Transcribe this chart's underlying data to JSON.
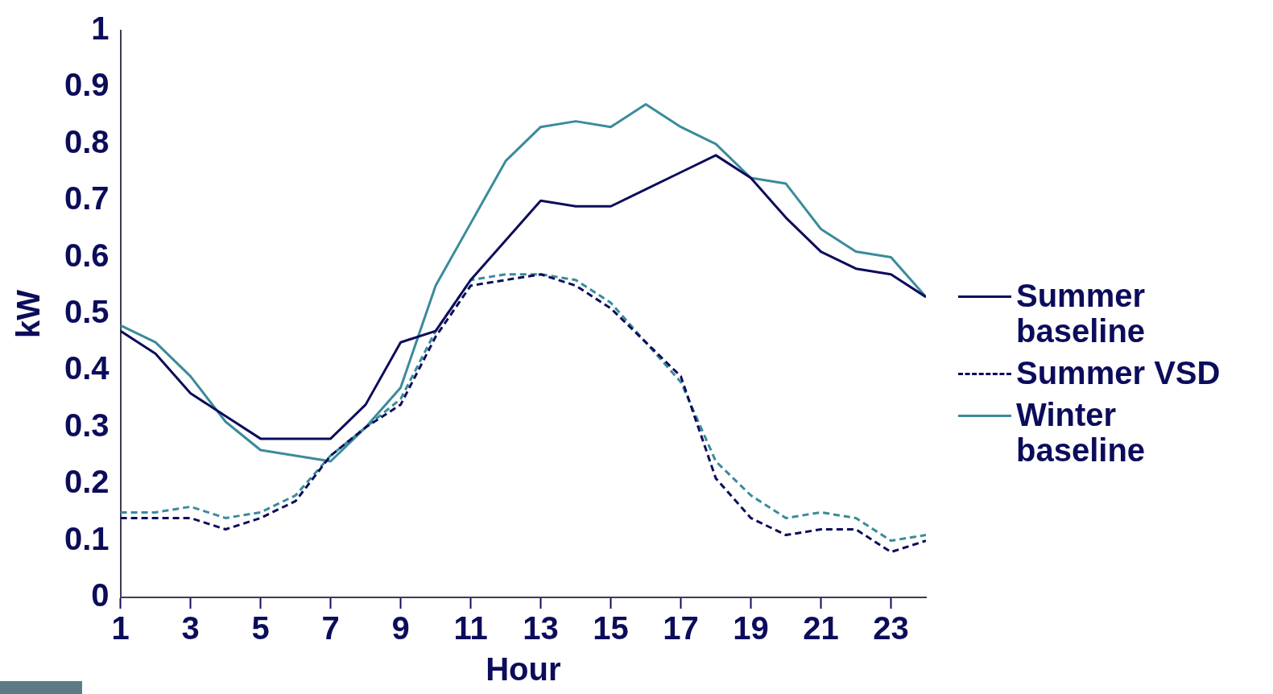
{
  "chart_data": {
    "type": "line",
    "xlabel": "Hour",
    "ylabel": "kW",
    "x": [
      1,
      2,
      3,
      4,
      5,
      6,
      7,
      8,
      9,
      10,
      11,
      12,
      13,
      14,
      15,
      16,
      17,
      18,
      19,
      20,
      21,
      22,
      23,
      24
    ],
    "xlim": [
      1,
      24
    ],
    "xticks": [
      1,
      3,
      5,
      7,
      9,
      11,
      13,
      15,
      17,
      19,
      21,
      23
    ],
    "ylim": [
      0,
      1
    ],
    "yticks": [
      0,
      0.1,
      0.2,
      0.3,
      0.4,
      0.5,
      0.6,
      0.7,
      0.8,
      0.9,
      1
    ],
    "grid": false,
    "legend": "right",
    "marker": "none",
    "series": [
      {
        "name": "Summer baseline",
        "color": "#0c0c5c",
        "line_style": "solid",
        "values": [
          0.47,
          0.43,
          0.36,
          0.32,
          0.28,
          0.28,
          0.28,
          0.34,
          0.45,
          0.47,
          0.56,
          0.63,
          0.7,
          0.69,
          0.69,
          0.72,
          0.75,
          0.78,
          0.74,
          0.67,
          0.61,
          0.58,
          0.57,
          0.53
        ]
      },
      {
        "name": "Summer VSD",
        "color": "#0c0c5c",
        "line_style": "dashed",
        "values": [
          0.14,
          0.14,
          0.14,
          0.12,
          0.14,
          0.17,
          0.25,
          0.3,
          0.34,
          0.46,
          0.55,
          0.56,
          0.57,
          0.55,
          0.51,
          0.45,
          0.39,
          0.21,
          0.14,
          0.11,
          0.12,
          0.12,
          0.08,
          0.1
        ]
      },
      {
        "name": "Winter baseline",
        "color": "#3a8b9b",
        "line_style": "solid",
        "values": [
          0.48,
          0.45,
          0.39,
          0.31,
          0.26,
          0.25,
          0.24,
          0.3,
          0.37,
          0.55,
          0.66,
          0.77,
          0.83,
          0.84,
          0.83,
          0.87,
          0.83,
          0.8,
          0.74,
          0.73,
          0.65,
          0.61,
          0.6,
          0.53
        ]
      },
      {
        "color": "#3a8b9b",
        "line_style": "dashed",
        "values": [
          0.15,
          0.15,
          0.16,
          0.14,
          0.15,
          0.18,
          0.25,
          0.3,
          0.35,
          0.47,
          0.56,
          0.57,
          0.57,
          0.56,
          0.52,
          0.45,
          0.38,
          0.24,
          0.18,
          0.14,
          0.15,
          0.14,
          0.1,
          0.11
        ]
      }
    ]
  }
}
